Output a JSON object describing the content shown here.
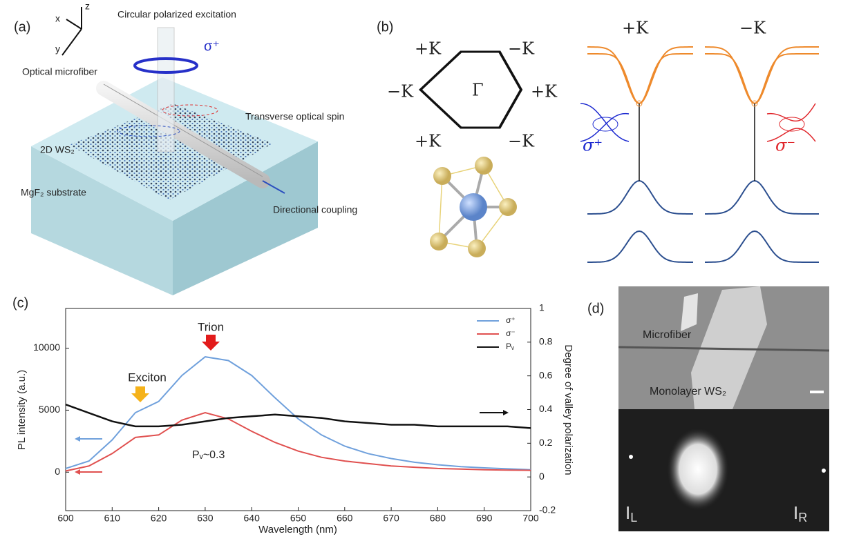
{
  "panel_a": {
    "label": "(a)",
    "axis_x": "x",
    "axis_y": "y",
    "axis_z": "z",
    "excitation": "Circular polarized excitation",
    "sigma": "σ⁺",
    "microfiber": "Optical microfiber",
    "spin": "Transverse optical spin",
    "ws2": "2D WS₂",
    "substrate": "MgF₂ substrate",
    "coupling": "Directional coupling"
  },
  "panel_b": {
    "label": "(b)",
    "corners": [
      "+K",
      "−K",
      "−K",
      "+K",
      "+K",
      "−K"
    ],
    "center": "Γ",
    "band_labels": [
      "+K",
      "−K"
    ],
    "sigma_plus": "σ⁺",
    "sigma_minus": "σ⁻"
  },
  "panel_d": {
    "label": "(d)",
    "microfiber": "Microfiber",
    "monolayer": "Monolayer WS₂",
    "left": {
      "main": "I",
      "sub": "L"
    },
    "right": {
      "main": "I",
      "sub": "R"
    }
  },
  "chart_data": {
    "type": "line",
    "panel_label": "(c)",
    "x_label": "Wavelength (nm)",
    "y_label": "PL intensity (a.u.)",
    "y2_label": "Degree of valley polarization",
    "annotations": [
      "Trion",
      "Exciton",
      "Pᵥ~0.3"
    ],
    "x": [
      600,
      605,
      610,
      615,
      620,
      625,
      630,
      635,
      640,
      645,
      650,
      655,
      660,
      665,
      670,
      675,
      680,
      685,
      690,
      695,
      700
    ],
    "series": [
      {
        "name": "σ⁺",
        "color": "#6fa0dc",
        "values": [
          300,
          900,
          2600,
          4800,
          5700,
          7800,
          9300,
          9000,
          7800,
          6000,
          4300,
          3000,
          2100,
          1500,
          1100,
          800,
          600,
          450,
          350,
          270,
          200
        ]
      },
      {
        "name": "σ⁻",
        "color": "#e0504f",
        "values": [
          100,
          500,
          1500,
          2800,
          3000,
          4200,
          4800,
          4300,
          3300,
          2400,
          1700,
          1200,
          900,
          700,
          500,
          400,
          300,
          250,
          200,
          170,
          150
        ]
      },
      {
        "name": "Pᵥ",
        "color": "#111111",
        "axis": "y2",
        "values": [
          0.43,
          0.38,
          0.33,
          0.3,
          0.3,
          0.31,
          0.33,
          0.35,
          0.36,
          0.37,
          0.36,
          0.35,
          0.33,
          0.32,
          0.31,
          0.31,
          0.3,
          0.3,
          0.3,
          0.3,
          0.29
        ]
      }
    ],
    "xlim": [
      600,
      700
    ],
    "xticks": [
      600,
      610,
      620,
      630,
      640,
      650,
      660,
      670,
      680,
      690,
      700
    ],
    "ylim": [
      -3100,
      13200
    ],
    "yticks": [
      0,
      5000,
      10000
    ],
    "y2lim": [
      -0.2,
      1.0
    ],
    "y2ticks": [
      -0.2,
      0,
      0.2,
      0.4,
      0.6,
      0.8,
      1
    ]
  }
}
